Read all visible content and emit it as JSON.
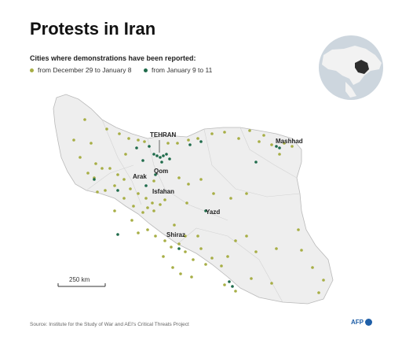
{
  "title": "Protests in Iran",
  "subtitle": "Cities where demonstrations have been reported:",
  "legend": {
    "early": "from December 29 to January 8",
    "late": "from January 9 to 11"
  },
  "colors": {
    "early": "#a7ae45",
    "late": "#1f6b4b",
    "land": "#eeeeee",
    "border": "#b9b9b9",
    "credit": "#1f5fa8",
    "globe": "#cdd6de",
    "globe_land": "#f2f2f2",
    "globe_highlight": "#2e2e2e"
  },
  "cities": {
    "tehran": "TEHRAN",
    "mashhad": "Mashhad",
    "qom": "Qom",
    "arak": "Arak",
    "isfahan": "Isfahan",
    "yazd": "Yazd",
    "shiraz": "Shiraz"
  },
  "scale": {
    "label": "250 km"
  },
  "source": "Source: Institute for the Study of War and AEI's Critical Threats Project",
  "credit": "AFP"
}
